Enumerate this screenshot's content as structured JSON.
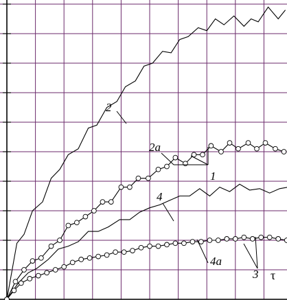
{
  "chart_data": {
    "type": "line",
    "title": "",
    "xlabel": "τ",
    "ylabel": "",
    "xlim": [
      0,
      10
    ],
    "ylim": [
      0,
      10
    ],
    "grid": true,
    "legend": "none",
    "colors": {
      "grid": "#6b2a6b",
      "curve": "#000000",
      "background": "#ffffff"
    },
    "series": [
      {
        "name": "2",
        "marker": "none",
        "x": [
          0,
          0.35,
          0.6,
          0.9,
          1.25,
          1.55,
          1.85,
          2.15,
          2.5,
          2.85,
          3.15,
          3.5,
          3.85,
          4.15,
          4.5,
          4.8,
          5.1,
          5.45,
          5.75,
          6.05,
          6.35,
          6.7,
          7.0,
          7.3,
          7.6,
          7.95,
          8.3,
          8.55,
          8.8,
          9.15,
          9.5,
          9.75
        ],
        "y": [
          0,
          1.9,
          2.2,
          3.0,
          3.3,
          4.1,
          4.4,
          4.9,
          5.1,
          5.8,
          5.9,
          6.5,
          6.7,
          7.2,
          7.4,
          7.9,
          8.0,
          8.4,
          8.35,
          8.8,
          8.9,
          9.2,
          9.1,
          9.5,
          9.3,
          9.6,
          9.25,
          9.5,
          9.4,
          9.9,
          9.5,
          9.8
        ]
      },
      {
        "name": "2a",
        "marker": "circle",
        "x": [
          0,
          0.3,
          0.6,
          0.9,
          1.2,
          1.55,
          1.85,
          2.15,
          2.45,
          2.75,
          3.05,
          3.35,
          3.65,
          4.0,
          4.3,
          4.6,
          4.95,
          5.3,
          5.6,
          5.9,
          6.25,
          6.55,
          6.85,
          7.15,
          7.5,
          7.8,
          8.1,
          8.45,
          8.75,
          9.05,
          9.4,
          9.7
        ],
        "y": [
          0,
          0.6,
          1.0,
          1.3,
          1.4,
          1.8,
          2.0,
          2.5,
          2.6,
          2.8,
          3.0,
          3.3,
          3.3,
          3.8,
          3.8,
          4.1,
          4.1,
          4.4,
          4.5,
          4.8,
          4.6,
          4.9,
          4.9,
          5.2,
          5.0,
          5.3,
          5.1,
          5.3,
          5.1,
          5.3,
          5.1,
          5.0
        ]
      },
      {
        "name": "4",
        "marker": "none",
        "x": [
          0,
          0.4,
          0.75,
          1.05,
          1.45,
          1.8,
          2.15,
          2.5,
          2.85,
          3.2,
          3.55,
          3.95,
          4.3,
          4.65,
          5.0,
          5.35,
          5.7,
          6.05,
          6.4,
          6.75,
          7.1,
          7.45,
          7.8,
          8.15,
          8.5,
          8.85,
          9.2,
          9.55,
          9.85
        ],
        "y": [
          0,
          0.55,
          0.9,
          1.05,
          1.35,
          1.7,
          1.8,
          1.95,
          2.3,
          2.3,
          2.45,
          2.7,
          2.7,
          2.95,
          3.1,
          3.2,
          3.35,
          3.5,
          3.5,
          3.75,
          3.5,
          3.8,
          3.65,
          3.9,
          3.7,
          3.75,
          3.6,
          3.75,
          3.8
        ]
      },
      {
        "name": "4a",
        "marker": "circle",
        "x": [
          0,
          0.25,
          0.5,
          0.8,
          1.1,
          1.4,
          1.7,
          2.0,
          2.3,
          2.6,
          2.9,
          3.2,
          3.5,
          3.8,
          4.1,
          4.4,
          4.7,
          5.0,
          5.3,
          5.6,
          5.9,
          6.2,
          6.5,
          6.8,
          7.1,
          7.4,
          7.7,
          8.0,
          8.3,
          8.6,
          8.9,
          9.2,
          9.5,
          9.8
        ],
        "y": [
          0,
          0.3,
          0.55,
          0.7,
          0.8,
          0.9,
          1.0,
          1.1,
          1.25,
          1.35,
          1.4,
          1.45,
          1.5,
          1.6,
          1.6,
          1.65,
          1.75,
          1.8,
          1.8,
          1.85,
          1.9,
          1.9,
          1.95,
          1.95,
          2.0,
          2.0,
          2.05,
          2.05,
          2.1,
          2.05,
          2.1,
          2.1,
          2.05,
          2.0
        ]
      }
    ],
    "annotations": [
      {
        "text": "2",
        "points_to": "2"
      },
      {
        "text": "2a",
        "points_to": "2a"
      },
      {
        "text": "1",
        "points_to": "2a"
      },
      {
        "text": "4",
        "points_to": "4"
      },
      {
        "text": "4a",
        "points_to": "4a"
      },
      {
        "text": "3",
        "points_to": "4a"
      }
    ]
  }
}
